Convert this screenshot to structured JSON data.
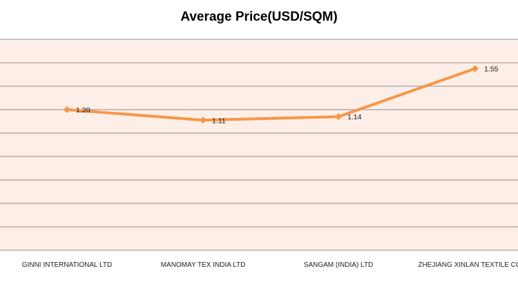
{
  "chart_data": {
    "type": "line",
    "title": "Average Price(USD/SQM)",
    "xlabel": "",
    "ylabel": "",
    "categories": [
      "GINNI INTERNATIONAL  LTD",
      "MANOMAY TEX INDIA LTD",
      "SANGAM (INDIA) LTD",
      "ZHEJIANG XINLAN TEXTILE CO"
    ],
    "series": [
      {
        "values": [
          1.2,
          1.11,
          1.14,
          1.55
        ]
      }
    ],
    "data_labels": [
      "1.20",
      "1.11",
      "1.14",
      "1.55"
    ],
    "ylim": [
      0,
      1.8
    ],
    "grid": true,
    "legend": "none",
    "colors": {
      "line": "#F79646",
      "plot_background": "#FDEEE8",
      "gridline": "#8C8C8C"
    }
  }
}
